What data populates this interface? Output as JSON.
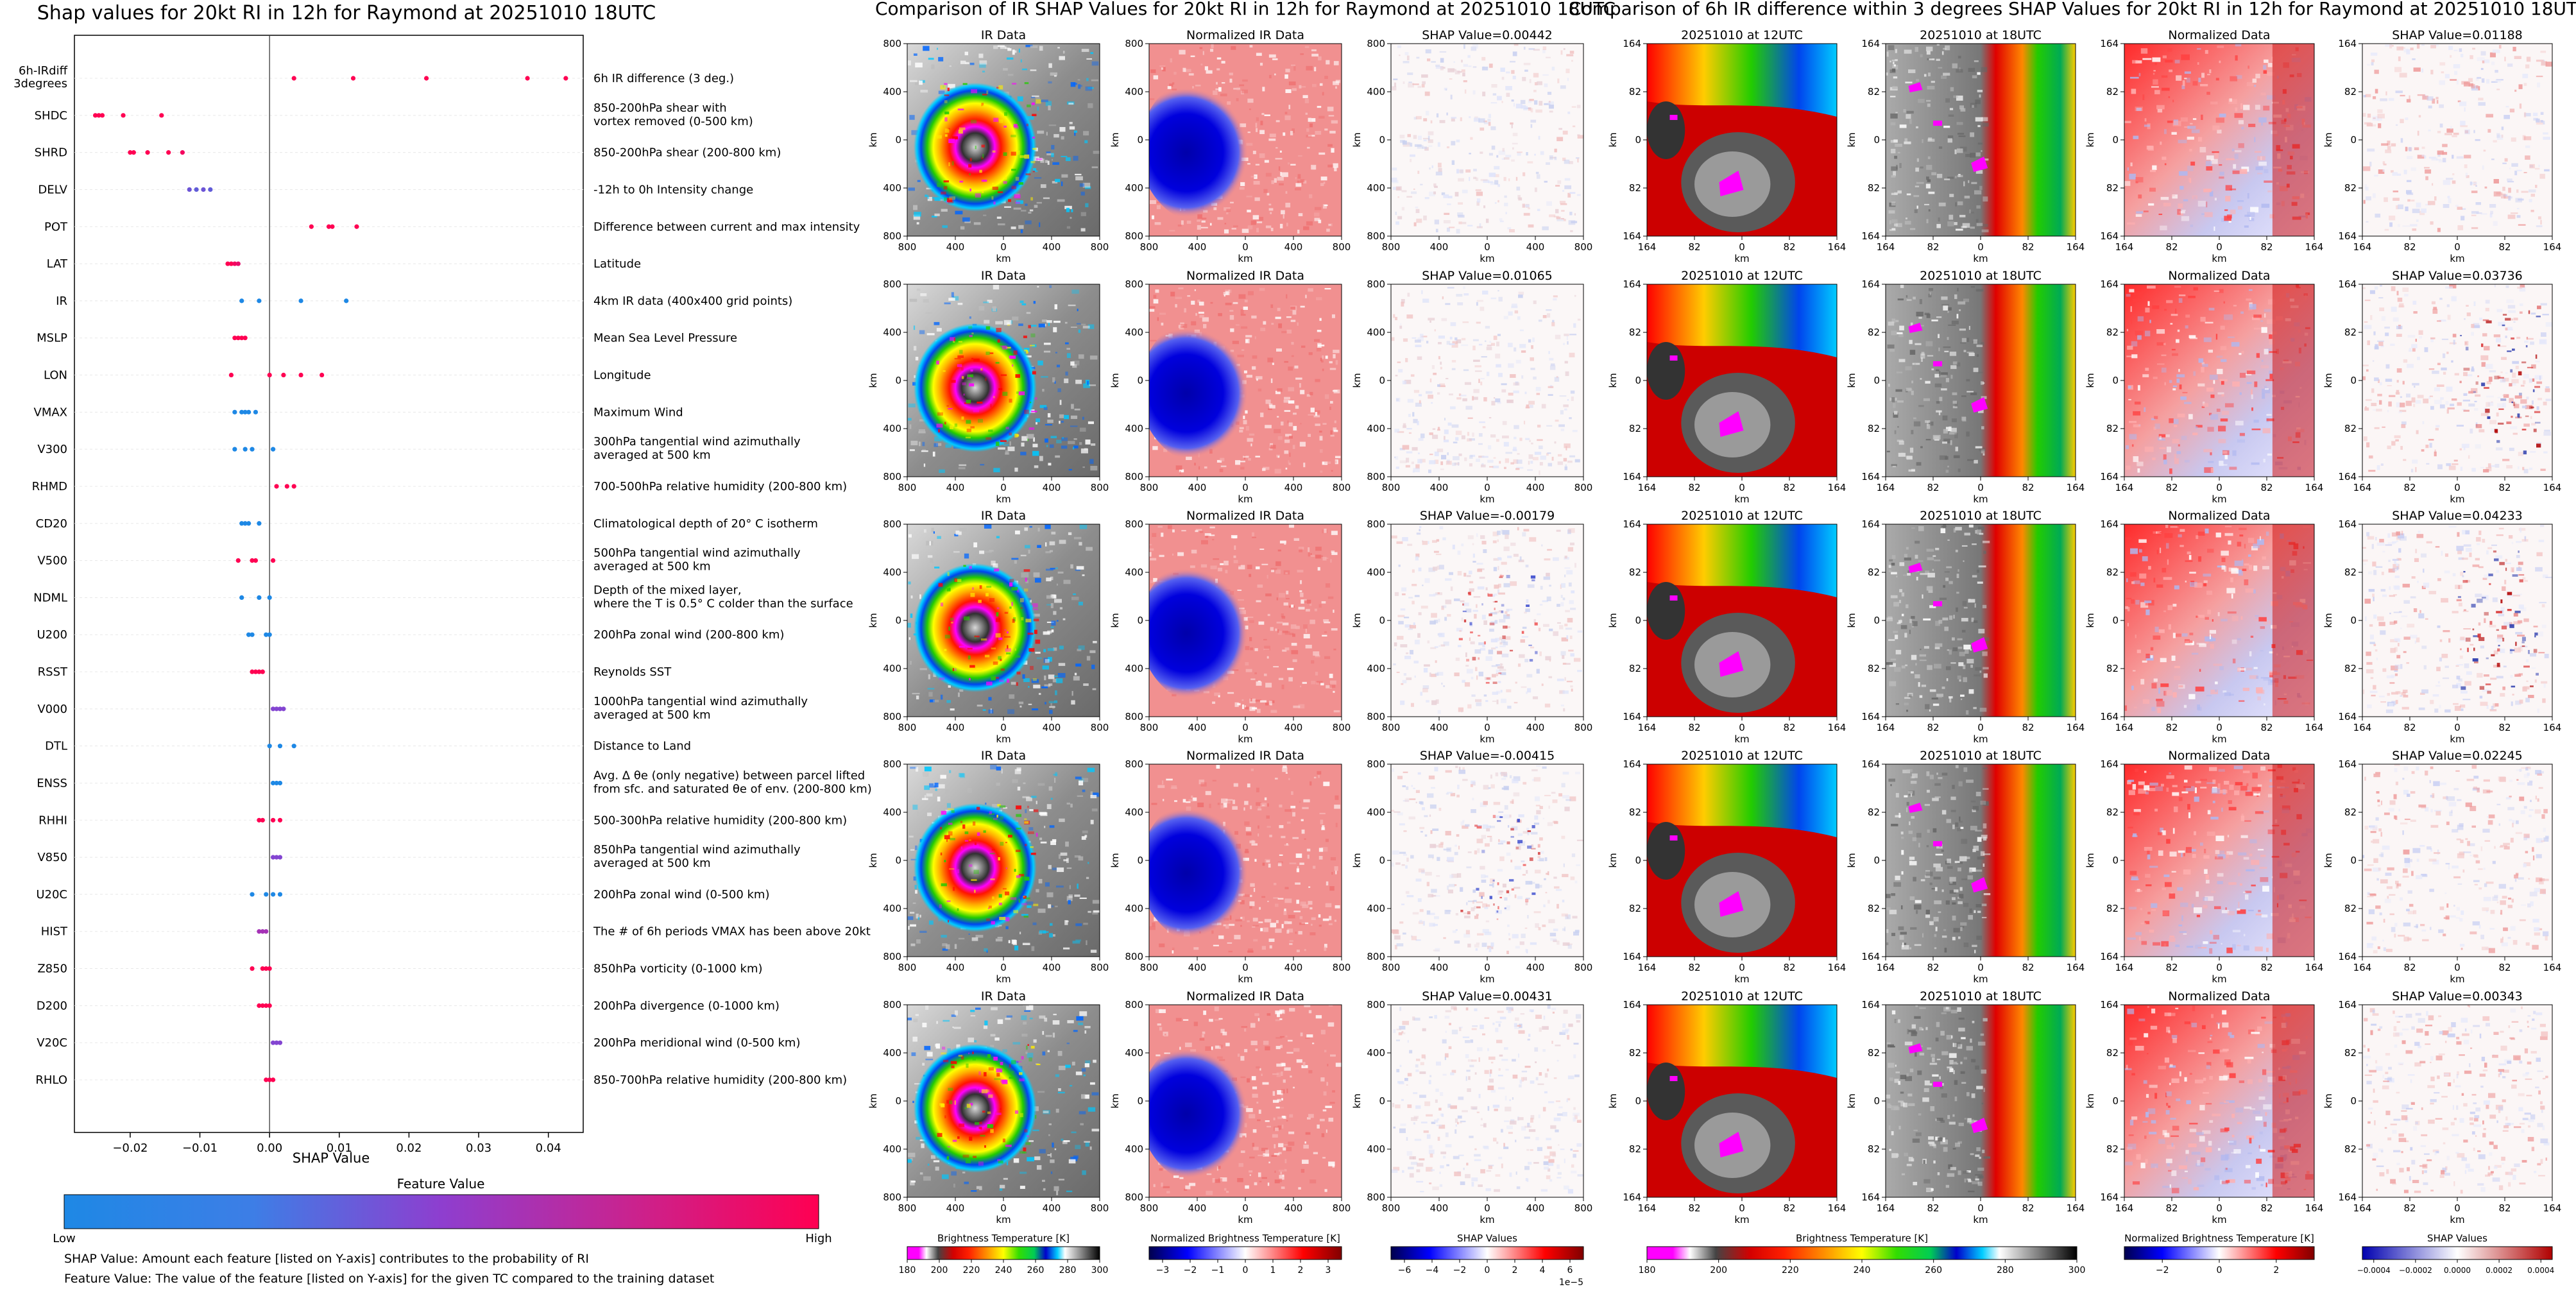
{
  "colors": {
    "feature_low": "#1e88e5",
    "feature_high": "#ff0052",
    "feature_mid": "#8e3ecf",
    "grid": "#e8e8e8"
  },
  "left_panel": {
    "title": "Shap values for 20kt RI in 12h for Raymond at 20251010 18UTC",
    "xlabel": "SHAP Value",
    "xticks": [
      "−0.02",
      "−0.01",
      "0.00",
      "0.01",
      "0.02",
      "0.03",
      "0.04"
    ],
    "colorbar_title": "Feature Value",
    "colorbar_low": "Low",
    "colorbar_high": "High",
    "footnote_1": "SHAP Value: Amount each feature [listed on Y-axis] contributes to the probability of RI",
    "footnote_2": "Feature Value: The value of the feature [listed on Y-axis] for the given TC compared to the training dataset"
  },
  "chart_data": [
    {
      "type": "scatter",
      "title": "Shap values for 20kt RI in 12h for Raymond at 20251010 18UTC",
      "xlabel": "SHAP Value",
      "xlim": [
        -0.028,
        0.045
      ],
      "grid": true,
      "colorbar": {
        "label": "Feature Value",
        "low": "Low",
        "high": "High"
      },
      "features": [
        {
          "code": [
            "6h-IRdiff",
            "3degrees"
          ],
          "desc": [
            "6h IR difference (3 deg.)"
          ],
          "points": [
            [
              0.0035,
              1
            ],
            [
              0.012,
              1
            ],
            [
              0.0225,
              1
            ],
            [
              0.037,
              1
            ],
            [
              0.0425,
              1
            ]
          ]
        },
        {
          "code": [
            "SHDC"
          ],
          "desc": [
            "850-200hPa shear with",
            "vortex removed (0-500 km)"
          ],
          "points": [
            [
              -0.025,
              1
            ],
            [
              -0.0245,
              1
            ],
            [
              -0.024,
              1
            ],
            [
              -0.021,
              1
            ],
            [
              -0.0155,
              1
            ]
          ]
        },
        {
          "code": [
            "SHRD"
          ],
          "desc": [
            "850-200hPa shear (200-800 km)"
          ],
          "points": [
            [
              -0.02,
              1
            ],
            [
              -0.0195,
              1
            ],
            [
              -0.0175,
              1
            ],
            [
              -0.0145,
              1
            ],
            [
              -0.0125,
              0.95
            ]
          ]
        },
        {
          "code": [
            "DELV"
          ],
          "desc": [
            "-12h to 0h Intensity change"
          ],
          "points": [
            [
              -0.0115,
              0.35
            ],
            [
              -0.0105,
              0.3
            ],
            [
              -0.0095,
              0.35
            ],
            [
              -0.0085,
              0.3
            ]
          ]
        },
        {
          "code": [
            "POT"
          ],
          "desc": [
            "Difference between current and max intensity"
          ],
          "points": [
            [
              0.006,
              1
            ],
            [
              0.0085,
              1
            ],
            [
              0.009,
              1
            ],
            [
              0.0125,
              1
            ]
          ]
        },
        {
          "code": [
            "LAT"
          ],
          "desc": [
            "Latitude"
          ],
          "points": [
            [
              -0.006,
              1
            ],
            [
              -0.0055,
              1
            ],
            [
              -0.005,
              0.95
            ],
            [
              -0.0045,
              0.9
            ]
          ]
        },
        {
          "code": [
            "IR"
          ],
          "desc": [
            "4km IR data (400x400 grid points)"
          ],
          "points": [
            [
              -0.004,
              0
            ],
            [
              -0.0015,
              0
            ],
            [
              0.0045,
              0
            ],
            [
              0.011,
              0
            ]
          ]
        },
        {
          "code": [
            "MSLP"
          ],
          "desc": [
            "Mean Sea Level Pressure"
          ],
          "points": [
            [
              -0.005,
              1
            ],
            [
              -0.0045,
              1
            ],
            [
              -0.004,
              1
            ],
            [
              -0.0035,
              1
            ]
          ]
        },
        {
          "code": [
            "LON"
          ],
          "desc": [
            "Longitude"
          ],
          "points": [
            [
              -0.0055,
              1
            ],
            [
              0.0,
              1
            ],
            [
              0.002,
              1
            ],
            [
              0.0045,
              1
            ],
            [
              0.0075,
              1
            ]
          ]
        },
        {
          "code": [
            "VMAX"
          ],
          "desc": [
            "Maximum Wind"
          ],
          "points": [
            [
              -0.005,
              0
            ],
            [
              -0.004,
              0
            ],
            [
              -0.0035,
              0
            ],
            [
              -0.003,
              0
            ],
            [
              -0.002,
              0
            ]
          ]
        },
        {
          "code": [
            "V300"
          ],
          "desc": [
            "300hPa tangential wind azimuthally",
            "averaged at 500 km"
          ],
          "points": [
            [
              -0.005,
              0
            ],
            [
              -0.0035,
              0
            ],
            [
              -0.0025,
              0
            ],
            [
              0.0005,
              0
            ]
          ]
        },
        {
          "code": [
            "RHMD"
          ],
          "desc": [
            "700-500hPa relative humidity (200-800 km)"
          ],
          "points": [
            [
              0.001,
              1
            ],
            [
              0.0025,
              1
            ],
            [
              0.0035,
              1
            ]
          ]
        },
        {
          "code": [
            "CD20"
          ],
          "desc": [
            "Climatological depth of 20° C isotherm"
          ],
          "points": [
            [
              -0.004,
              0
            ],
            [
              -0.0035,
              0
            ],
            [
              -0.003,
              0
            ],
            [
              -0.0015,
              0
            ]
          ]
        },
        {
          "code": [
            "V500"
          ],
          "desc": [
            "500hPa tangential wind azimuthally",
            "averaged at 500 km"
          ],
          "points": [
            [
              -0.0045,
              1
            ],
            [
              -0.0025,
              1
            ],
            [
              -0.002,
              1
            ],
            [
              0.0005,
              1
            ]
          ]
        },
        {
          "code": [
            "NDML"
          ],
          "desc": [
            "Depth of the mixed layer,",
            "where the T is 0.5° C colder than the surface"
          ],
          "points": [
            [
              -0.004,
              0
            ],
            [
              -0.0015,
              0
            ],
            [
              0.0,
              0
            ]
          ]
        },
        {
          "code": [
            "U200"
          ],
          "desc": [
            "200hPa zonal wind (200-800 km)"
          ],
          "points": [
            [
              -0.003,
              0
            ],
            [
              -0.0025,
              0
            ],
            [
              -0.0005,
              0
            ],
            [
              0.0,
              0
            ]
          ]
        },
        {
          "code": [
            "RSST"
          ],
          "desc": [
            "Reynolds SST"
          ],
          "points": [
            [
              -0.0025,
              1
            ],
            [
              -0.002,
              1
            ],
            [
              -0.0015,
              1
            ],
            [
              -0.001,
              1
            ]
          ]
        },
        {
          "code": [
            "V000"
          ],
          "desc": [
            "1000hPa tangential wind azimuthally",
            "averaged at 500 km"
          ],
          "points": [
            [
              0.0005,
              0.45
            ],
            [
              0.001,
              0.45
            ],
            [
              0.0015,
              0.45
            ],
            [
              0.002,
              0.45
            ]
          ]
        },
        {
          "code": [
            "DTL"
          ],
          "desc": [
            "Distance to Land"
          ],
          "points": [
            [
              0.0,
              0
            ],
            [
              0.0015,
              0
            ],
            [
              0.0035,
              0
            ]
          ]
        },
        {
          "code": [
            "ENSS"
          ],
          "desc": [
            "Avg. Δ θe (only negative) between parcel lifted",
            "from sfc. and saturated θe of env. (200-800 km)"
          ],
          "points": [
            [
              0.0005,
              0
            ],
            [
              0.001,
              0
            ],
            [
              0.0015,
              0
            ]
          ]
        },
        {
          "code": [
            "RHHI"
          ],
          "desc": [
            "500-300hPa relative humidity (200-800 km)"
          ],
          "points": [
            [
              -0.0015,
              1
            ],
            [
              -0.001,
              1
            ],
            [
              0.0005,
              1
            ],
            [
              0.0015,
              1
            ]
          ]
        },
        {
          "code": [
            "V850"
          ],
          "desc": [
            "850hPa tangential wind azimuthally",
            "averaged at 500 km"
          ],
          "points": [
            [
              0.0005,
              0.45
            ],
            [
              0.001,
              0.45
            ],
            [
              0.0015,
              0.45
            ]
          ]
        },
        {
          "code": [
            "U20C"
          ],
          "desc": [
            "200hPa zonal wind (0-500 km)"
          ],
          "points": [
            [
              -0.0025,
              0
            ],
            [
              -0.0005,
              0
            ],
            [
              0.0005,
              0
            ],
            [
              0.0015,
              0
            ]
          ]
        },
        {
          "code": [
            "HIST"
          ],
          "desc": [
            "The # of 6h periods VMAX has been above 20kt"
          ],
          "points": [
            [
              -0.0015,
              0.6
            ],
            [
              -0.001,
              0.6
            ],
            [
              -0.0005,
              0.6
            ]
          ]
        },
        {
          "code": [
            "Z850"
          ],
          "desc": [
            "850hPa vorticity (0-1000 km)"
          ],
          "points": [
            [
              -0.0025,
              1
            ],
            [
              -0.001,
              1
            ],
            [
              -0.0005,
              1
            ],
            [
              0.0,
              1
            ]
          ]
        },
        {
          "code": [
            "D200"
          ],
          "desc": [
            "200hPa divergence (0-1000 km)"
          ],
          "points": [
            [
              -0.0015,
              1
            ],
            [
              -0.001,
              1
            ],
            [
              -0.0005,
              1
            ],
            [
              0.0,
              1
            ]
          ]
        },
        {
          "code": [
            "V20C"
          ],
          "desc": [
            "200hPa meridional wind (0-500 km)"
          ],
          "points": [
            [
              0.0005,
              0.45
            ],
            [
              0.001,
              0.45
            ],
            [
              0.0015,
              0.45
            ]
          ]
        },
        {
          "code": [
            "RHLO"
          ],
          "desc": [
            "850-700hPa relative humidity (200-800 km)"
          ],
          "points": [
            [
              -0.0005,
              1
            ],
            [
              0.0,
              1
            ],
            [
              0.0005,
              1
            ]
          ]
        }
      ]
    },
    {
      "type": "heatmap",
      "title": "Comparison of IR SHAP Values for 20kt RI in 12h for Raymond at 20251010 18UTC",
      "columns": [
        "IR Data",
        "Normalized IR Data",
        "SHAP Value"
      ],
      "shap_values": [
        "0.00442",
        "0.01065",
        "-0.00179",
        "-0.00415",
        "0.00431"
      ],
      "axis_ticks": [
        "800",
        "400",
        "0",
        "400",
        "800"
      ],
      "axis_label": "km",
      "colorbars": [
        {
          "label": "Brightness Temperature [K]",
          "ticks": [
            "180",
            "200",
            "220",
            "240",
            "260",
            "280",
            "300"
          ]
        },
        {
          "label": "Normalized Brightness Temperature [K]",
          "ticks": [
            "−3",
            "−2",
            "−1",
            "0",
            "1",
            "2",
            "3"
          ]
        },
        {
          "label": "SHAP Values",
          "ticks": [
            "−6",
            "−4",
            "−2",
            "0",
            "2",
            "4",
            "6"
          ],
          "offset": "1e−5"
        }
      ]
    },
    {
      "type": "heatmap",
      "title": "Comparison of 6h IR difference within 3 degrees SHAP Values for 20kt RI in 12h for Raymond at 20251010 18UTC",
      "columns": [
        "20251010 at 12UTC",
        "20251010 at 18UTC",
        "Normalized Data",
        "SHAP Value"
      ],
      "shap_values": [
        "0.01188",
        "0.03736",
        "0.04233",
        "0.02245",
        "0.00343"
      ],
      "axis_ticks": [
        "164",
        "82",
        "0",
        "82",
        "164"
      ],
      "axis_label": "km",
      "colorbars": [
        {
          "label": "Brightness Temperature [K]",
          "ticks": [
            "180",
            "200",
            "220",
            "240",
            "260",
            "280",
            "300"
          ]
        },
        {
          "label": "Normalized Brightness Temperature [K]",
          "ticks": [
            "−2",
            "0",
            "2"
          ]
        },
        {
          "label": "SHAP Values",
          "ticks": [
            "−0.0004",
            "−0.0002",
            "0.0000",
            "0.0002",
            "0.0004"
          ]
        }
      ]
    }
  ]
}
